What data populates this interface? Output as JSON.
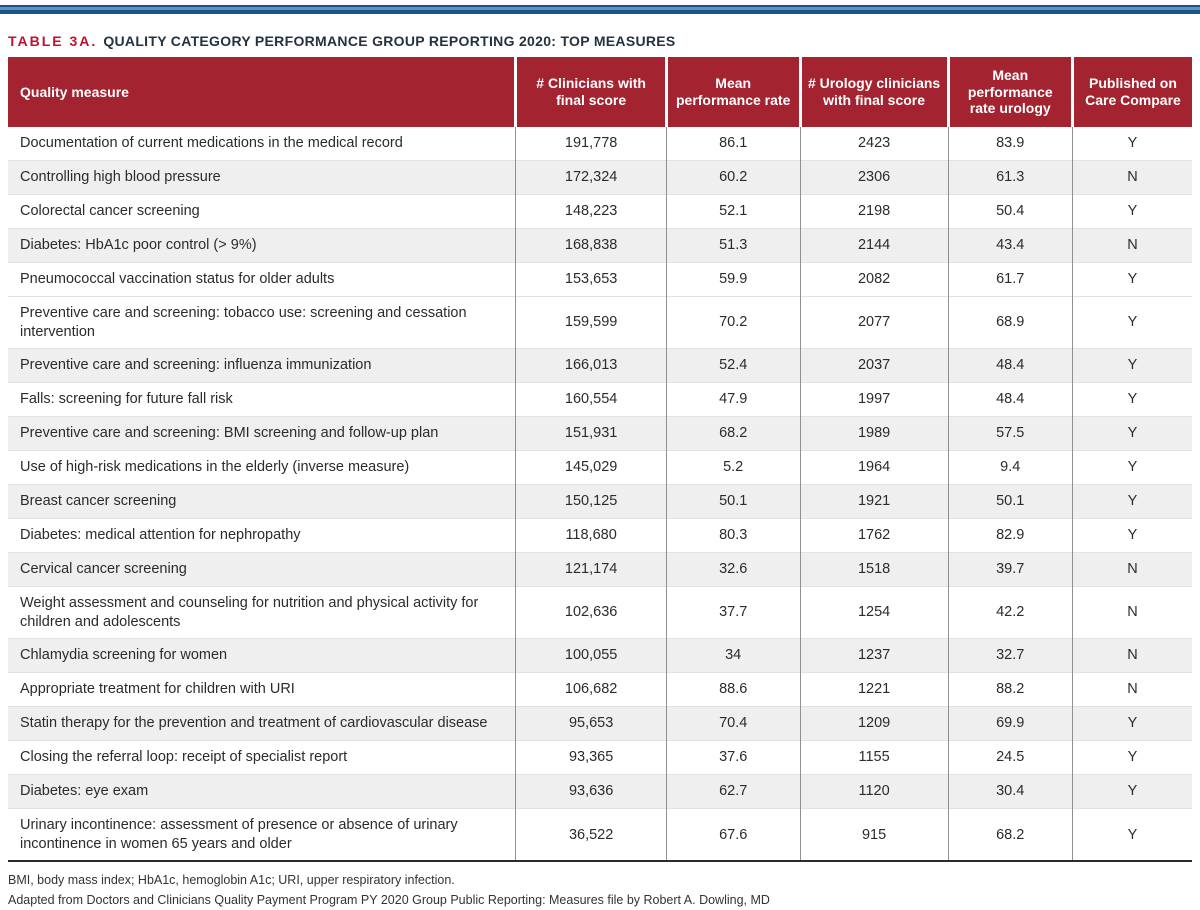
{
  "title": {
    "label": "TABLE 3A.",
    "text": "QUALITY CATEGORY PERFORMANCE GROUP REPORTING 2020: TOP MEASURES"
  },
  "colors": {
    "header_background": "#A32330",
    "title_accent": "#C2112F",
    "top_bar_dark": "#1D5286",
    "top_bar_light": "#5E92C0",
    "shaded_row": "#EFEFEF",
    "body_text": "#2B2B2B",
    "divider": "#909090"
  },
  "table": {
    "columns": [
      {
        "key": "measure",
        "label": "Quality measure"
      },
      {
        "key": "clinicians",
        "label": "# Clinicians with final score"
      },
      {
        "key": "mean_rate",
        "label": "Mean performance rate"
      },
      {
        "key": "urology_clinicians",
        "label": "# Urology clinicians with final score"
      },
      {
        "key": "mean_rate_urology",
        "label": "Mean performance rate urology"
      },
      {
        "key": "published",
        "label": "Published on Care Compare"
      }
    ],
    "rows": [
      {
        "measure": "Documentation of current medications in the medical record",
        "clinicians": "191,778",
        "mean_rate": "86.1",
        "urology_clinicians": "2423",
        "mean_rate_urology": "83.9",
        "published": "Y",
        "shaded": false
      },
      {
        "measure": "Controlling high blood pressure",
        "clinicians": "172,324",
        "mean_rate": "60.2",
        "urology_clinicians": "2306",
        "mean_rate_urology": "61.3",
        "published": "N",
        "shaded": true
      },
      {
        "measure": "Colorectal cancer screening",
        "clinicians": "148,223",
        "mean_rate": "52.1",
        "urology_clinicians": "2198",
        "mean_rate_urology": "50.4",
        "published": "Y",
        "shaded": false
      },
      {
        "measure": "Diabetes: HbA1c poor control (> 9%)",
        "clinicians": "168,838",
        "mean_rate": "51.3",
        "urology_clinicians": "2144",
        "mean_rate_urology": "43.4",
        "published": "N",
        "shaded": true
      },
      {
        "measure": "Pneumococcal vaccination status for older adults",
        "clinicians": "153,653",
        "mean_rate": "59.9",
        "urology_clinicians": "2082",
        "mean_rate_urology": "61.7",
        "published": "Y",
        "shaded": false
      },
      {
        "measure": "Preventive care and screening: tobacco use: screening and cessation intervention",
        "clinicians": "159,599",
        "mean_rate": "70.2",
        "urology_clinicians": "2077",
        "mean_rate_urology": "68.9",
        "published": "Y",
        "shaded": false
      },
      {
        "measure": "Preventive care and screening: influenza immunization",
        "clinicians": "166,013",
        "mean_rate": "52.4",
        "urology_clinicians": "2037",
        "mean_rate_urology": "48.4",
        "published": "Y",
        "shaded": true
      },
      {
        "measure": "Falls: screening for future fall risk",
        "clinicians": "160,554",
        "mean_rate": "47.9",
        "urology_clinicians": "1997",
        "mean_rate_urology": "48.4",
        "published": "Y",
        "shaded": false
      },
      {
        "measure": "Preventive care and screening: BMI screening and follow-up plan",
        "clinicians": "151,931",
        "mean_rate": "68.2",
        "urology_clinicians": "1989",
        "mean_rate_urology": "57.5",
        "published": "Y",
        "shaded": true
      },
      {
        "measure": "Use of high-risk medications in the elderly (inverse measure)",
        "clinicians": "145,029",
        "mean_rate": "5.2",
        "urology_clinicians": "1964",
        "mean_rate_urology": "9.4",
        "published": "Y",
        "shaded": false
      },
      {
        "measure": "Breast cancer screening",
        "clinicians": "150,125",
        "mean_rate": "50.1",
        "urology_clinicians": "1921",
        "mean_rate_urology": "50.1",
        "published": "Y",
        "shaded": true
      },
      {
        "measure": "Diabetes: medical attention for nephropathy",
        "clinicians": "118,680",
        "mean_rate": "80.3",
        "urology_clinicians": "1762",
        "mean_rate_urology": "82.9",
        "published": "Y",
        "shaded": false
      },
      {
        "measure": "Cervical cancer screening",
        "clinicians": "121,174",
        "mean_rate": "32.6",
        "urology_clinicians": "1518",
        "mean_rate_urology": "39.7",
        "published": "N",
        "shaded": true
      },
      {
        "measure": "Weight assessment and counseling for nutrition and physical activity for children and adolescents",
        "clinicians": "102,636",
        "mean_rate": "37.7",
        "urology_clinicians": "1254",
        "mean_rate_urology": "42.2",
        "published": "N",
        "shaded": false
      },
      {
        "measure": "Chlamydia screening for women",
        "clinicians": "100,055",
        "mean_rate": "34",
        "urology_clinicians": "1237",
        "mean_rate_urology": "32.7",
        "published": "N",
        "shaded": true
      },
      {
        "measure": "Appropriate treatment for children with URI",
        "clinicians": "106,682",
        "mean_rate": "88.6",
        "urology_clinicians": "1221",
        "mean_rate_urology": "88.2",
        "published": "N",
        "shaded": false
      },
      {
        "measure": "Statin therapy for the prevention and treatment of cardiovascular disease",
        "clinicians": "95,653",
        "mean_rate": "70.4",
        "urology_clinicians": "1209",
        "mean_rate_urology": "69.9",
        "published": "Y",
        "shaded": true
      },
      {
        "measure": "Closing the referral loop: receipt of specialist report",
        "clinicians": "93,365",
        "mean_rate": "37.6",
        "urology_clinicians": "1155",
        "mean_rate_urology": "24.5",
        "published": "Y",
        "shaded": false
      },
      {
        "measure": "Diabetes: eye exam",
        "clinicians": "93,636",
        "mean_rate": "62.7",
        "urology_clinicians": "1120",
        "mean_rate_urology": "30.4",
        "published": "Y",
        "shaded": true
      },
      {
        "measure": "Urinary incontinence: assessment of presence or absence of urinary incontinence in women 65 years and older",
        "clinicians": "36,522",
        "mean_rate": "67.6",
        "urology_clinicians": "915",
        "mean_rate_urology": "68.2",
        "published": "Y",
        "shaded": false
      }
    ]
  },
  "footnotes": [
    "BMI, body mass index; HbA1c, hemoglobin A1c; URI, upper respiratory infection.",
    "Adapted from Doctors and Clinicians Quality Payment Program PY 2020 Group Public Reporting: Measures file by Robert A. Dowling, MD"
  ]
}
